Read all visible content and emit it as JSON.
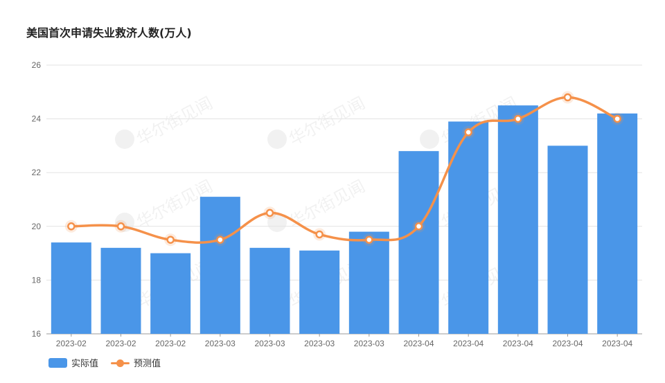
{
  "chart_data": {
    "type": "bar",
    "title": "美国首次申请失业救济人数(万人)",
    "categories": [
      "2023-02",
      "2023-02",
      "2023-02",
      "2023-03",
      "2023-03",
      "2023-03",
      "2023-03",
      "2023-04",
      "2023-04",
      "2023-04",
      "2023-04",
      "2023-04"
    ],
    "series": [
      {
        "name": "实际值",
        "type": "bar",
        "color": "#4a96e8",
        "values": [
          19.4,
          19.2,
          19.0,
          21.1,
          19.2,
          19.1,
          19.8,
          22.8,
          23.9,
          24.5,
          23.0,
          24.2
        ]
      },
      {
        "name": "预测值",
        "type": "line",
        "color": "#f5914a",
        "values": [
          20.0,
          20.0,
          19.5,
          19.5,
          20.5,
          19.7,
          19.5,
          20.0,
          23.5,
          24.0,
          24.8,
          24.0
        ]
      }
    ],
    "ylim": [
      16,
      26
    ],
    "yticks": [
      16,
      18,
      20,
      22,
      24,
      26
    ],
    "grid": true,
    "legend": "bottom-left"
  },
  "watermark": "华尔街见闻"
}
